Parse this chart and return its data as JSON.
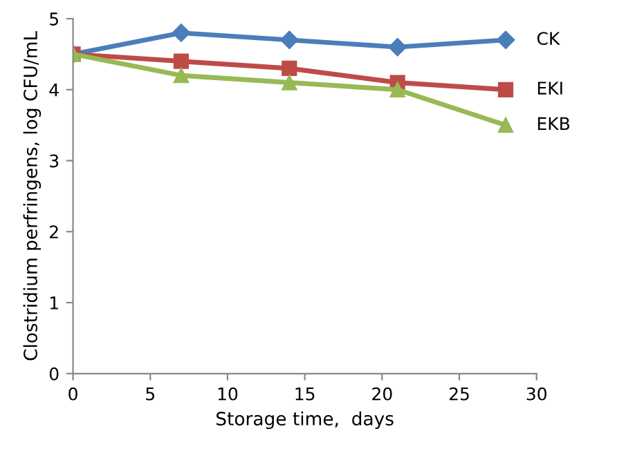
{
  "chart_data": {
    "type": "line",
    "xlabel": "Storage time,  days",
    "ylabel": "Clostridium perfringens, log CFU/mL",
    "x": [
      0,
      7,
      14,
      21,
      28
    ],
    "xlim": [
      0,
      30
    ],
    "xticks": [
      0,
      5,
      10,
      15,
      20,
      25,
      30
    ],
    "ylim": [
      0,
      5
    ],
    "yticks": [
      0,
      1,
      2,
      3,
      4,
      5
    ],
    "grid": false,
    "legend": false,
    "series": [
      {
        "name": "CK",
        "color": "#4a7ebb",
        "marker": "diamond",
        "values": [
          4.5,
          4.8,
          4.7,
          4.6,
          4.7
        ]
      },
      {
        "name": "EKI",
        "color": "#be4b48",
        "marker": "square",
        "values": [
          4.5,
          4.4,
          4.3,
          4.1,
          4.0
        ]
      },
      {
        "name": "EKB",
        "color": "#98b954",
        "marker": "triangle",
        "values": [
          4.5,
          4.2,
          4.1,
          4.0,
          3.5
        ]
      }
    ]
  }
}
